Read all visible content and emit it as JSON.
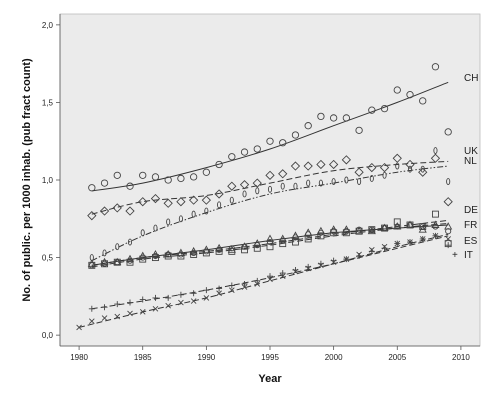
{
  "chart_data": {
    "type": "scatter",
    "title": "",
    "xlabel": "Year",
    "ylabel": "No. of public. per 1000 inhab. (pub fract count)",
    "xlim": [
      1978.5,
      2011.5
    ],
    "ylim": [
      -0.07,
      2.07
    ],
    "xticks": [
      1980,
      1985,
      1990,
      1995,
      2000,
      2005,
      2010
    ],
    "yticks": [
      0.0,
      0.5,
      1.0,
      1.5,
      2.0
    ],
    "ytick_labels": [
      "0,0",
      "0,5",
      "1,0",
      "1,5",
      "2,0"
    ],
    "grid": false,
    "legend": "none",
    "colors": {
      "plot_bg": "#ebebeb",
      "marks": "#444444"
    },
    "series": [
      {
        "name": "CH",
        "marker": "circle",
        "line_style": "solid",
        "x": [
          1981,
          1982,
          1983,
          1984,
          1985,
          1986,
          1987,
          1988,
          1989,
          1990,
          1991,
          1992,
          1993,
          1994,
          1995,
          1996,
          1997,
          1998,
          1999,
          2000,
          2001,
          2002,
          2003,
          2004,
          2005,
          2006,
          2007,
          2008,
          2009
        ],
        "y": [
          0.95,
          0.98,
          1.03,
          0.96,
          1.03,
          1.02,
          1.0,
          1.01,
          1.02,
          1.05,
          1.1,
          1.15,
          1.18,
          1.2,
          1.25,
          1.24,
          1.29,
          1.35,
          1.41,
          1.4,
          1.4,
          1.32,
          1.45,
          1.46,
          1.58,
          1.55,
          1.51,
          1.73,
          1.31
        ],
        "fit": [
          [
            1981,
            0.93
          ],
          [
            1985,
            0.98
          ],
          [
            1990,
            1.08
          ],
          [
            1995,
            1.2
          ],
          [
            2000,
            1.35
          ],
          [
            2005,
            1.5
          ],
          [
            2009,
            1.63
          ]
        ]
      },
      {
        "name": "UK",
        "marker": "diamond",
        "line_style": "dashed",
        "x": [
          1981,
          1982,
          1983,
          1984,
          1985,
          1986,
          1987,
          1988,
          1989,
          1990,
          1991,
          1992,
          1993,
          1994,
          1995,
          1996,
          1997,
          1998,
          1999,
          2000,
          2001,
          2002,
          2003,
          2004,
          2005,
          2006,
          2007,
          2008,
          2009
        ],
        "y": [
          0.77,
          0.8,
          0.82,
          0.8,
          0.86,
          0.88,
          0.85,
          0.86,
          0.87,
          0.87,
          0.91,
          0.96,
          0.97,
          0.98,
          1.03,
          1.04,
          1.09,
          1.09,
          1.1,
          1.1,
          1.13,
          1.05,
          1.08,
          1.08,
          1.14,
          1.1,
          1.05,
          1.14,
          0.86
        ],
        "fit": [
          [
            1981,
            0.78
          ],
          [
            1985,
            0.86
          ],
          [
            1990,
            0.9
          ],
          [
            1995,
            0.98
          ],
          [
            2000,
            1.06
          ],
          [
            2005,
            1.1
          ],
          [
            2009,
            1.12
          ]
        ]
      },
      {
        "name": "NL",
        "marker": "ellipse",
        "line_style": "dash-dot-dot",
        "x": [
          1981,
          1982,
          1983,
          1984,
          1985,
          1986,
          1987,
          1988,
          1989,
          1990,
          1991,
          1992,
          1993,
          1994,
          1995,
          1996,
          1997,
          1998,
          1999,
          2000,
          2001,
          2002,
          2003,
          2004,
          2005,
          2006,
          2007,
          2008,
          2009
        ],
        "y": [
          0.5,
          0.53,
          0.57,
          0.6,
          0.66,
          0.69,
          0.73,
          0.75,
          0.78,
          0.8,
          0.84,
          0.87,
          0.91,
          0.93,
          0.94,
          0.96,
          0.96,
          0.98,
          0.98,
          0.99,
          1.0,
          0.99,
          1.01,
          1.03,
          1.09,
          1.07,
          1.07,
          1.19,
          0.99
        ],
        "fit": [
          [
            1981,
            0.48
          ],
          [
            1985,
            0.64
          ],
          [
            1990,
            0.79
          ],
          [
            1995,
            0.91
          ],
          [
            2000,
            0.98
          ],
          [
            2005,
            1.05
          ],
          [
            2009,
            1.09
          ]
        ]
      },
      {
        "name": "DE",
        "marker": "triangle",
        "line_style": "solid",
        "x": [
          1981,
          1982,
          1983,
          1984,
          1985,
          1986,
          1987,
          1988,
          1989,
          1990,
          1991,
          1992,
          1993,
          1994,
          1995,
          1996,
          1997,
          1998,
          1999,
          2000,
          2001,
          2002,
          2003,
          2004,
          2005,
          2006,
          2007,
          2008,
          2009
        ],
        "y": [
          0.46,
          0.47,
          0.47,
          0.49,
          0.51,
          0.52,
          0.52,
          0.53,
          0.54,
          0.55,
          0.56,
          0.55,
          0.57,
          0.59,
          0.62,
          0.62,
          0.64,
          0.66,
          0.67,
          0.68,
          0.68,
          0.67,
          0.67,
          0.69,
          0.7,
          0.71,
          0.68,
          0.71,
          0.7
        ],
        "fit": [
          [
            1981,
            0.45
          ],
          [
            1985,
            0.5
          ],
          [
            1990,
            0.55
          ],
          [
            1995,
            0.61
          ],
          [
            2000,
            0.66
          ],
          [
            2005,
            0.69
          ],
          [
            2009,
            0.71
          ]
        ]
      },
      {
        "name": "FR",
        "marker": "circle-small",
        "line_style": "dashed",
        "x": [
          1981,
          1982,
          1983,
          1984,
          1985,
          1986,
          1987,
          1988,
          1989,
          1990,
          1991,
          1992,
          1993,
          1994,
          1995,
          1996,
          1997,
          1998,
          1999,
          2000,
          2001,
          2002,
          2003,
          2004,
          2005,
          2006,
          2007,
          2008,
          2009
        ],
        "y": [
          0.45,
          0.46,
          0.47,
          0.48,
          0.5,
          0.51,
          0.52,
          0.52,
          0.53,
          0.54,
          0.55,
          0.56,
          0.57,
          0.58,
          0.6,
          0.61,
          0.63,
          0.65,
          0.66,
          0.67,
          0.67,
          0.68,
          0.68,
          0.69,
          0.7,
          0.71,
          0.7,
          0.7,
          0.67
        ],
        "fit": [
          [
            1981,
            0.45
          ],
          [
            1985,
            0.5
          ],
          [
            1990,
            0.54
          ],
          [
            1995,
            0.59
          ],
          [
            2000,
            0.65
          ],
          [
            2005,
            0.7
          ],
          [
            2009,
            0.74
          ]
        ]
      },
      {
        "name": "ES",
        "marker": "square",
        "line_style": "dashed",
        "x": [
          1981,
          1982,
          1983,
          1984,
          1985,
          1986,
          1987,
          1988,
          1989,
          1990,
          1991,
          1992,
          1993,
          1994,
          1995,
          1996,
          1997,
          1998,
          1999,
          2000,
          2001,
          2002,
          2003,
          2004,
          2005,
          2006,
          2007,
          2008,
          2009
        ],
        "y": [
          0.45,
          0.46,
          0.47,
          0.47,
          0.49,
          0.5,
          0.51,
          0.51,
          0.52,
          0.53,
          0.54,
          0.54,
          0.55,
          0.56,
          0.57,
          0.59,
          0.6,
          0.62,
          0.64,
          0.66,
          0.66,
          0.67,
          0.68,
          0.69,
          0.73,
          0.71,
          0.7,
          0.78,
          0.59
        ],
        "fit": [
          [
            1981,
            0.44
          ],
          [
            1985,
            0.49
          ],
          [
            1990,
            0.53
          ],
          [
            1995,
            0.58
          ],
          [
            2000,
            0.64
          ],
          [
            2005,
            0.69
          ],
          [
            2009,
            0.72
          ]
        ]
      },
      {
        "name": "IT",
        "marker": "plus",
        "line_style": "dashed",
        "x": [
          1981,
          1982,
          1983,
          1984,
          1985,
          1986,
          1987,
          1988,
          1989,
          1990,
          1991,
          1992,
          1993,
          1994,
          1995,
          1996,
          1997,
          1998,
          1999,
          2000,
          2001,
          2002,
          2003,
          2004,
          2005,
          2006,
          2007,
          2008,
          2009
        ],
        "y": [
          0.17,
          0.18,
          0.2,
          0.21,
          0.23,
          0.24,
          0.24,
          0.26,
          0.27,
          0.29,
          0.3,
          0.32,
          0.33,
          0.35,
          0.38,
          0.4,
          0.42,
          0.44,
          0.46,
          0.48,
          0.49,
          0.51,
          0.54,
          0.56,
          0.59,
          0.6,
          0.62,
          0.64,
          0.58
        ],
        "fit": [
          [
            1981,
            0.17
          ],
          [
            1985,
            0.22
          ],
          [
            1990,
            0.29
          ],
          [
            1995,
            0.37
          ],
          [
            2000,
            0.46
          ],
          [
            2005,
            0.56
          ],
          [
            2009,
            0.64
          ]
        ]
      },
      {
        "name": "",
        "marker": "cross",
        "line_style": "dashed",
        "x": [
          1980,
          1981,
          1982,
          1983,
          1984,
          1985,
          1986,
          1987,
          1988,
          1989,
          1990,
          1991,
          1992,
          1993,
          1994,
          1995,
          1996,
          1997,
          1998,
          1999,
          2000,
          2001,
          2002,
          2003,
          2004,
          2005,
          2006,
          2007,
          2008,
          2009
        ],
        "y": [
          0.05,
          0.09,
          0.11,
          0.12,
          0.14,
          0.15,
          0.17,
          0.19,
          0.21,
          0.22,
          0.24,
          0.27,
          0.29,
          0.31,
          0.33,
          0.36,
          0.38,
          0.41,
          0.43,
          0.45,
          0.47,
          0.49,
          0.52,
          0.55,
          0.57,
          0.59,
          0.6,
          0.62,
          0.64,
          0.62
        ],
        "fit": [
          [
            1980,
            0.05
          ],
          [
            1985,
            0.15
          ],
          [
            1990,
            0.24
          ],
          [
            1995,
            0.35
          ],
          [
            2000,
            0.46
          ],
          [
            2005,
            0.57
          ],
          [
            2009,
            0.65
          ]
        ]
      }
    ],
    "label_positions_note": "labels printed at right edge"
  },
  "labels": {
    "CH": "CH",
    "UK": "UK",
    "NL": "NL",
    "DE": "DE",
    "FR": "FR",
    "ES": "ES",
    "IT": "IT",
    "IT_marker": "+"
  }
}
